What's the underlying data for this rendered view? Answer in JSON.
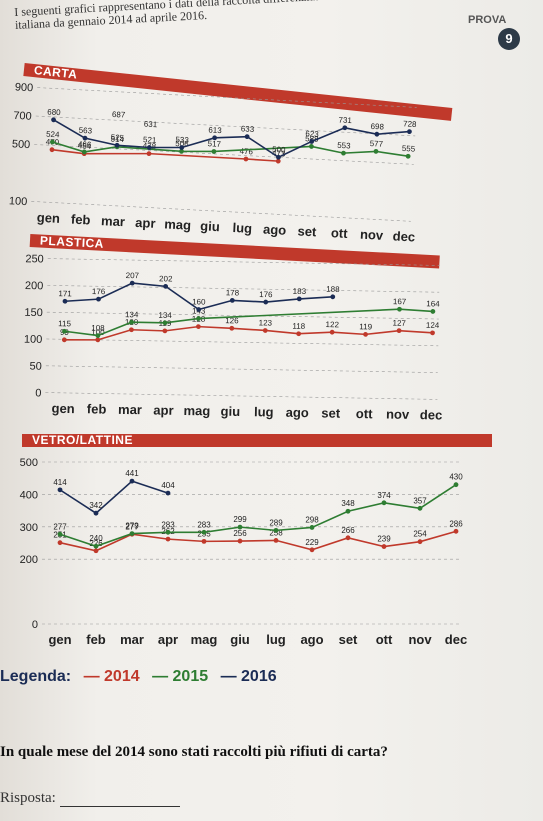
{
  "intro": "I seguenti grafici rappresentano i dati della raccolta differenziata dei rifiuti in una città italiana da gennaio 2014 ad aprile 2016.",
  "badge": {
    "label": "PROVA",
    "number": "9"
  },
  "months": [
    "gen",
    "feb",
    "mar",
    "apr",
    "mag",
    "giu",
    "lug",
    "ago",
    "set",
    "ott",
    "nov",
    "dec"
  ],
  "colors": {
    "2014": "#c0392b",
    "2015": "#2e7d32",
    "2016": "#1b2c55"
  },
  "chart_data": [
    {
      "type": "line",
      "title": "CARTA",
      "categories": [
        "gen",
        "feb",
        "mar",
        "apr",
        "mag",
        "giu",
        "lug",
        "ago",
        "set",
        "ott",
        "nov",
        "dec"
      ],
      "yticks": [
        100,
        500,
        700,
        900
      ],
      "ylim": [
        100,
        900
      ],
      "series": [
        {
          "name": "2014",
          "values": [
            470,
            454,
            null,
            478,
            null,
            null,
            476,
            473,
            null,
            null,
            null,
            null
          ],
          "labels": [
            "470",
            "454",
            "",
            "478",
            "",
            "",
            "476",
            "473",
            "",
            "",
            "",
            ""
          ]
        },
        {
          "name": "2015",
          "values": [
            524,
            466,
            514,
            null,
            506,
            517,
            null,
            null,
            588,
            553,
            577,
            555
          ],
          "labels": [
            "524",
            "466",
            "514",
            "",
            "506",
            "517",
            "",
            "",
            "588",
            "553",
            "577",
            "555"
          ]
        },
        {
          "name": "2016",
          "values": [
            680,
            563,
            525,
            521,
            533,
            613,
            633,
            500,
            623,
            731,
            698,
            728
          ],
          "labels": [
            "680",
            "563",
            "525",
            "521",
            "533",
            "613",
            "633",
            "500",
            "623",
            "731",
            "698",
            "728"
          ]
        },
        {
          "name": "",
          "values": [
            null,
            null,
            687,
            631,
            null,
            null,
            null,
            null,
            null,
            null,
            null,
            null
          ],
          "labels": [
            "",
            "",
            "687",
            "631",
            "",
            "",
            "",
            "",
            "",
            "",
            "",
            ""
          ]
        }
      ]
    },
    {
      "type": "line",
      "title": "PLASTICA",
      "categories": [
        "gen",
        "feb",
        "mar",
        "apr",
        "mag",
        "giu",
        "lug",
        "ago",
        "set",
        "ott",
        "nov",
        "dec"
      ],
      "yticks": [
        0,
        50,
        100,
        150,
        200,
        250
      ],
      "ylim": [
        0,
        250
      ],
      "series": [
        {
          "name": "2014",
          "values": [
            99,
            100,
            120,
            119,
            128,
            126,
            123,
            118,
            122,
            119,
            127,
            124
          ],
          "labels": [
            "99",
            "100",
            "120",
            "119",
            "128",
            "126",
            "123",
            "118",
            "122",
            "119",
            "127",
            "124"
          ]
        },
        {
          "name": "2015",
          "values": [
            115,
            108,
            134,
            134,
            143,
            null,
            null,
            null,
            null,
            null,
            167,
            164
          ],
          "labels": [
            "115",
            "108",
            "134",
            "134",
            "143",
            "",
            "",
            "",
            "",
            "",
            "167",
            "164"
          ]
        },
        {
          "name": "2016",
          "values": [
            171,
            176,
            207,
            202,
            160,
            178,
            176,
            183,
            188,
            null,
            null,
            null
          ],
          "labels": [
            "171",
            "176",
            "207",
            "202",
            "160",
            "178",
            "176",
            "183",
            "188",
            "",
            "",
            ""
          ]
        }
      ]
    },
    {
      "type": "line",
      "title": "VETRO/LATTINE",
      "categories": [
        "gen",
        "feb",
        "mar",
        "apr",
        "mag",
        "giu",
        "lug",
        "ago",
        "set",
        "ott",
        "nov",
        "dec"
      ],
      "yticks": [
        0,
        200,
        300,
        400,
        500
      ],
      "ylim": [
        0,
        500
      ],
      "series": [
        {
          "name": "2014",
          "values": [
            251,
            226,
            277,
            262,
            255,
            256,
            258,
            229,
            266,
            239,
            254,
            286
          ],
          "labels": [
            "251",
            "226",
            "277",
            "262",
            "255",
            "256",
            "258",
            "229",
            "266",
            "239",
            "254",
            "286"
          ]
        },
        {
          "name": "2015",
          "values": [
            277,
            240,
            279,
            283,
            283,
            299,
            289,
            298,
            348,
            374,
            357,
            430
          ],
          "labels": [
            "277",
            "240",
            "279",
            "283",
            "283",
            "299",
            "289",
            "298",
            "348",
            "374",
            "357",
            "430"
          ]
        },
        {
          "name": "2016",
          "values": [
            414,
            342,
            441,
            404,
            null,
            null,
            null,
            null,
            null,
            null,
            null,
            null
          ],
          "labels": [
            "414",
            "342",
            "441",
            "404",
            "",
            "",
            "",
            "",
            "",
            "",
            "",
            ""
          ]
        }
      ]
    }
  ],
  "legend": {
    "label": "Legenda:",
    "items": [
      "— 2014",
      "— 2015",
      "— 2016"
    ]
  },
  "question": "In quale mese del 2014 sono stati raccolti più rifiuti di carta?",
  "answer_label": "Risposta:"
}
